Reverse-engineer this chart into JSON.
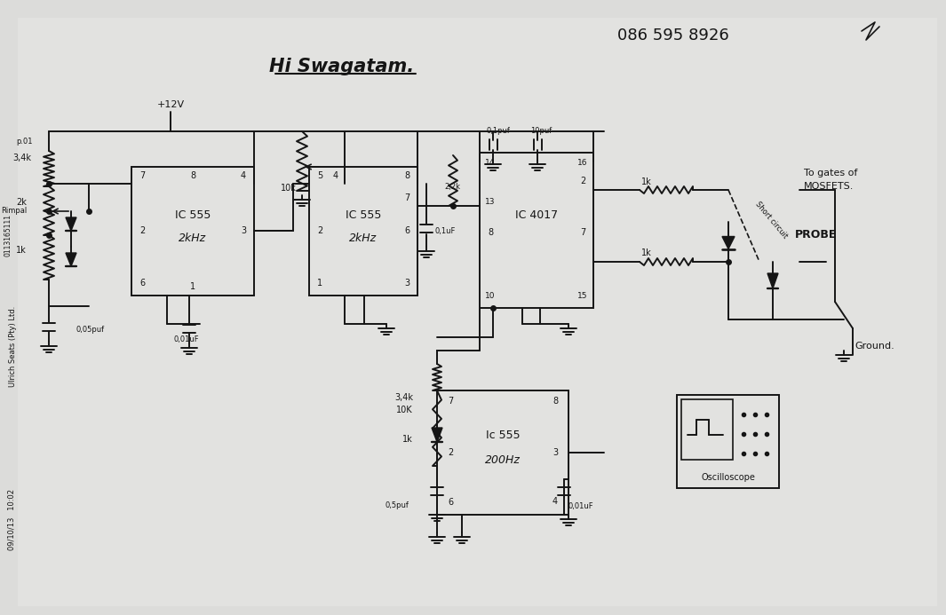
{
  "bg_color": "#dcdcda",
  "title": "Hi Swagatam.",
  "phone": "086 595 8926",
  "watermark_left": "Ulrich Seats (Pty) Ltd.",
  "watermark_date": "09/10/13   10:02",
  "watermark_side": "0113165111",
  "page": "p.01",
  "ic1_label": "IC 555",
  "ic1_freq": "2kHz",
  "ic2_label": "IC 555",
  "ic2_freq": "2kHz",
  "ic3_label": "IC 4017",
  "ic4_label": "Ic 555",
  "ic4_freq": "200Hz",
  "note1": "To gates of",
  "note2": "MOSFETS.",
  "note3": "PROBE",
  "note4": "Ground.",
  "note5": "Short circuit",
  "osc_label": "Oscilloscope",
  "vcc": "+12V",
  "lc": "#151515",
  "lw": 1.4
}
